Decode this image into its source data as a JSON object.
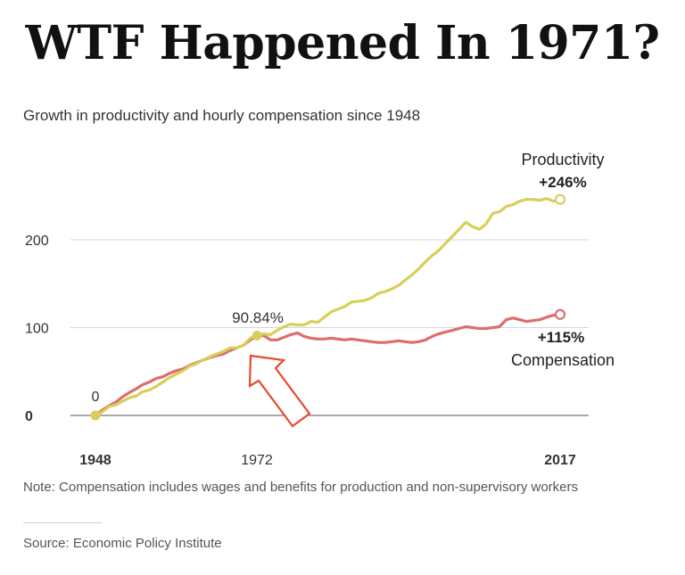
{
  "headline": "WTF Happened In 1971?",
  "chart_data": {
    "type": "line",
    "title": "Growth in productivity and hourly compensation since 1948",
    "x_range": [
      1948,
      2017
    ],
    "ylim": [
      0,
      250
    ],
    "y_ticks": [
      0,
      100,
      200
    ],
    "x_tick_labels": [
      "1948",
      "1972",
      "2017"
    ],
    "grid": true,
    "colors": {
      "productivity": "#d8cf5a",
      "compensation": "#dd6d6f",
      "arrow": "#e64a2e"
    },
    "series": [
      {
        "name": "Productivity",
        "end_label": "+246%",
        "x": [
          1948,
          1949,
          1950,
          1951,
          1952,
          1953,
          1954,
          1955,
          1956,
          1957,
          1958,
          1959,
          1960,
          1961,
          1962,
          1963,
          1964,
          1965,
          1966,
          1967,
          1968,
          1969,
          1970,
          1971,
          1972,
          1973,
          1974,
          1975,
          1976,
          1977,
          1978,
          1979,
          1980,
          1981,
          1982,
          1983,
          1984,
          1985,
          1986,
          1987,
          1988,
          1989,
          1990,
          1991,
          1992,
          1993,
          1994,
          1995,
          1996,
          1997,
          1998,
          1999,
          2000,
          2001,
          2002,
          2003,
          2004,
          2005,
          2006,
          2007,
          2008,
          2009,
          2010,
          2011,
          2012,
          2013,
          2014,
          2015,
          2016,
          2017
        ],
        "values": [
          0,
          4,
          10,
          12,
          16,
          20,
          22,
          27,
          29,
          33,
          38,
          43,
          47,
          51,
          56,
          59,
          63,
          67,
          70,
          73,
          77,
          77,
          80,
          88,
          91,
          93,
          92,
          97,
          101,
          104,
          103,
          103,
          107,
          106,
          112,
          118,
          121,
          124,
          129,
          130,
          131,
          134,
          139,
          141,
          144,
          148,
          154,
          160,
          167,
          175,
          182,
          188,
          196,
          204,
          212,
          220,
          215,
          212,
          218,
          230,
          232,
          238,
          240,
          244,
          246,
          246,
          245,
          247,
          244,
          246
        ]
      },
      {
        "name": "Compensation",
        "end_label": "+115%",
        "x": [
          1948,
          1949,
          1950,
          1951,
          1952,
          1953,
          1954,
          1955,
          1956,
          1957,
          1958,
          1959,
          1960,
          1961,
          1962,
          1963,
          1964,
          1965,
          1966,
          1967,
          1968,
          1969,
          1970,
          1971,
          1972,
          1973,
          1974,
          1975,
          1976,
          1977,
          1978,
          1979,
          1980,
          1981,
          1982,
          1983,
          1984,
          1985,
          1986,
          1987,
          1988,
          1989,
          1990,
          1991,
          1992,
          1993,
          1994,
          1995,
          1996,
          1997,
          1998,
          1999,
          2000,
          2001,
          2002,
          2003,
          2004,
          2005,
          2006,
          2007,
          2008,
          2009,
          2010,
          2011,
          2012,
          2013,
          2014,
          2015,
          2016,
          2017
        ],
        "values": [
          0,
          6,
          11,
          15,
          21,
          26,
          30,
          35,
          38,
          42,
          44,
          48,
          51,
          53,
          57,
          60,
          63,
          66,
          68,
          70,
          74,
          77,
          80,
          86,
          91,
          91,
          86,
          86,
          89,
          92,
          94,
          90,
          88,
          87,
          87,
          88,
          87,
          86,
          87,
          86,
          85,
          84,
          83,
          83,
          84,
          85,
          84,
          83,
          84,
          86,
          90,
          93,
          95,
          97,
          99,
          101,
          100,
          99,
          99,
          100,
          101,
          109,
          111,
          109,
          107,
          108,
          109,
          112,
          114,
          115
        ]
      }
    ],
    "annotations": [
      {
        "text": "0",
        "x": 1948,
        "y": 0
      },
      {
        "text": "90.84%",
        "x": 1972,
        "y": 90.84
      }
    ],
    "note": "Note: Compensation includes wages and benefits for production and non-supervisory workers",
    "source": "Source: Economic Policy Institute"
  }
}
